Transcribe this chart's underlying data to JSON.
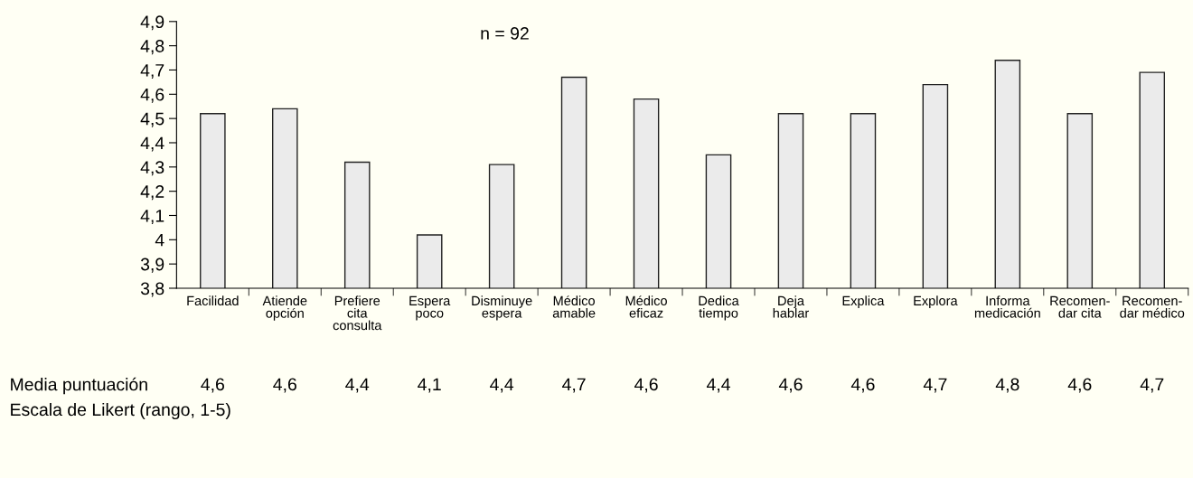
{
  "chart_data": {
    "type": "bar",
    "categories": [
      "Facilidad",
      "Atiende\nopción",
      "Prefiere\ncita\nconsulta",
      "Espera\npoco",
      "Disminuye\nespera",
      "Médico\namable",
      "Médico\neficaz",
      "Dedica\ntiempo",
      "Deja\nhablar",
      "Explica",
      "Explora",
      "Informa\nmedicación",
      "Recomen-\ndar cita",
      "Recomen-\ndar médico"
    ],
    "values": [
      4.52,
      4.54,
      4.32,
      4.02,
      4.31,
      4.67,
      4.58,
      4.35,
      4.52,
      4.52,
      4.64,
      4.74,
      4.52,
      4.69
    ],
    "color": "#ebebeb",
    "ylim": [
      3.8,
      4.9
    ],
    "yticks": [
      {
        "value": 3.8,
        "label": "3,8"
      },
      {
        "value": 3.9,
        "label": "3,9"
      },
      4,
      {
        "value": 4.1,
        "label": "4,1"
      },
      {
        "value": 4.2,
        "label": "4,2"
      },
      {
        "value": 4.3,
        "label": "4,3"
      },
      {
        "value": 4.4,
        "label": "4,4"
      },
      {
        "value": 4.5,
        "label": "4,5"
      },
      {
        "value": 4.6,
        "label": "4,6"
      },
      {
        "value": 4.7,
        "label": "4,7"
      },
      {
        "value": 4.8,
        "label": "4,8"
      },
      {
        "value": 4.9,
        "label": "4,9"
      }
    ],
    "annotations": [
      "n = 92",
      "Escala de Likert (rango, 1-5)",
      "Media puntuación",
      "4,6",
      "4,6",
      "4,4",
      "4,1",
      "4,4",
      "4,7",
      "4,6",
      "4,4",
      "4,6",
      "4,6",
      "4,7",
      "4,8",
      "4,6",
      "4,7"
    ],
    "grid": false,
    "legend": false
  }
}
